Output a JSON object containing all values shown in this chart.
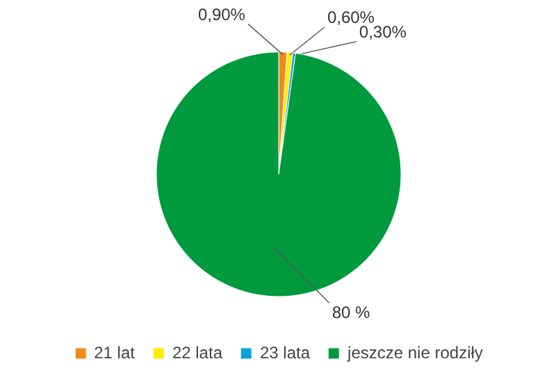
{
  "chart_data": {
    "type": "pie",
    "categories": [
      "21 lat",
      "22 lata",
      "23 lata",
      "jeszcze nie rodziły"
    ],
    "values": [
      0.9,
      0.6,
      0.3,
      80
    ],
    "colors": [
      "#f08a1c",
      "#ffed00",
      "#0aa0e0",
      "#009a3e"
    ],
    "value_labels": [
      "0,90%",
      "0,60%",
      "0,30%",
      "80 %"
    ],
    "legend": "bottom"
  }
}
